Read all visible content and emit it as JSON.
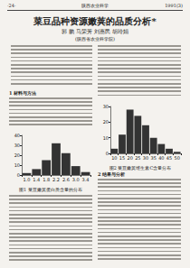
{
  "header": {
    "page": "·24·",
    "journal": "陕西农业科学",
    "issue": "1991(3)"
  },
  "title": "菜豆品种资源嫩荚的品质分析*",
  "authors": "郭 鹏  马荣芳  刘惠民  胡玲娟",
  "affiliation": "(陕西省农业科学院)",
  "sections": [
    "1 材料与方法",
    "2 结果与分析"
  ],
  "chart_data": [
    {
      "type": "bar",
      "title": "图1 菜豆嫩荚蛋白质含量的分布",
      "categories": [
        "1.0",
        "1.4",
        "1.8",
        "2.2",
        "2.6",
        "3.0",
        "3.4"
      ],
      "values": [
        2,
        6,
        15,
        32,
        22,
        9,
        3
      ],
      "color": "#333333",
      "ylim": [
        0,
        40
      ],
      "yticks": [
        0,
        10,
        20,
        30,
        40
      ],
      "grid": false
    },
    {
      "type": "bar",
      "title": "图2 菜豆嫩荚维生素C含量分布",
      "categories": [
        "10",
        "15",
        "20",
        "25",
        "30",
        "35",
        "40",
        "45",
        "50"
      ],
      "values": [
        3,
        12,
        28,
        24,
        18,
        10,
        6,
        3,
        1
      ],
      "color": "#333333",
      "ylim": [
        0,
        30
      ],
      "yticks": [
        0,
        10,
        20,
        30
      ],
      "grid": false
    }
  ]
}
